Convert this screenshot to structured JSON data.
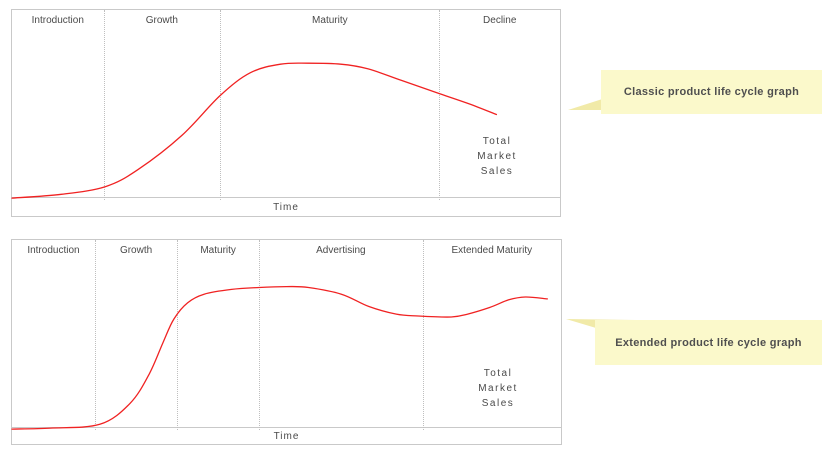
{
  "colors": {
    "curve": "#f02222",
    "chart_border": "#c9c9c9",
    "phase_divider": "#bfbfbf",
    "label_text": "#4a4a4a",
    "callout_bg": "#fbf9cb",
    "callout_tail": "#f1eaa8",
    "callout_text": "#4f4f4f"
  },
  "callouts": [
    {
      "text": "Classic product life cycle graph"
    },
    {
      "text": "Extended product life cycle graph"
    }
  ],
  "chart_data": [
    {
      "type": "line",
      "title": "Classic product life cycle graph",
      "xlabel": "Time",
      "ylabel": "Total Market Sales",
      "series_label_lines": [
        "Total",
        "Market",
        "Sales"
      ],
      "legend": "none",
      "grid": "phase dividers only (dotted vertical)",
      "x_unit": "percent of timeline (no numeric ticks shown)",
      "y_unit": "relative sales 0-100 (no numeric ticks shown)",
      "xlim": [
        0,
        100
      ],
      "ylim": [
        0,
        100
      ],
      "line_color": "#f02222",
      "phases": [
        {
          "label": "Introduction",
          "x_start": 0,
          "x_end": 16.7
        },
        {
          "label": "Growth",
          "x_start": 16.7,
          "x_end": 38
        },
        {
          "label": "Maturity",
          "x_start": 38,
          "x_end": 78
        },
        {
          "label": "Decline",
          "x_start": 78,
          "x_end": 100
        }
      ],
      "points": [
        [
          0,
          1
        ],
        [
          9,
          3
        ],
        [
          17,
          7
        ],
        [
          23,
          16
        ],
        [
          31,
          34
        ],
        [
          38,
          55
        ],
        [
          43.5,
          67
        ],
        [
          49,
          71.5
        ],
        [
          54,
          72
        ],
        [
          60,
          71.5
        ],
        [
          65,
          69
        ],
        [
          71,
          63
        ],
        [
          78,
          56
        ],
        [
          83.5,
          50.5
        ],
        [
          88.4,
          45
        ]
      ]
    },
    {
      "type": "line",
      "title": "Extended product life cycle graph",
      "xlabel": "Time",
      "ylabel": "Total Market Sales",
      "series_label_lines": [
        "Total",
        "Market",
        "Sales"
      ],
      "legend": "none",
      "grid": "phase dividers only (dotted vertical)",
      "x_unit": "percent of timeline (no numeric ticks shown)",
      "y_unit": "relative sales 0-100 (no numeric ticks shown)",
      "xlim": [
        0,
        100
      ],
      "ylim": [
        0,
        100
      ],
      "line_color": "#f02222",
      "phases": [
        {
          "label": "Introduction",
          "x_start": 0,
          "x_end": 15.1
        },
        {
          "label": "Growth",
          "x_start": 15.1,
          "x_end": 30.1
        },
        {
          "label": "Maturity",
          "x_start": 30.1,
          "x_end": 45
        },
        {
          "label": "Advertising",
          "x_start": 45,
          "x_end": 74.8
        },
        {
          "label": "Extended Maturity",
          "x_start": 74.8,
          "x_end": 100
        }
      ],
      "points": [
        [
          0,
          0.5
        ],
        [
          7,
          1
        ],
        [
          16,
          3
        ],
        [
          21.5,
          14
        ],
        [
          25,
          29.5
        ],
        [
          27.5,
          46
        ],
        [
          29.5,
          58.5
        ],
        [
          32,
          67
        ],
        [
          35,
          71.5
        ],
        [
          40,
          74
        ],
        [
          45,
          75
        ],
        [
          50,
          75.5
        ],
        [
          54,
          75
        ],
        [
          60,
          71.5
        ],
        [
          65,
          65
        ],
        [
          70,
          61
        ],
        [
          74,
          60
        ],
        [
          80,
          59.5
        ],
        [
          83,
          61
        ],
        [
          87,
          64.5
        ],
        [
          90.5,
          68.5
        ],
        [
          93.5,
          70
        ],
        [
          97.5,
          69
        ]
      ]
    }
  ]
}
